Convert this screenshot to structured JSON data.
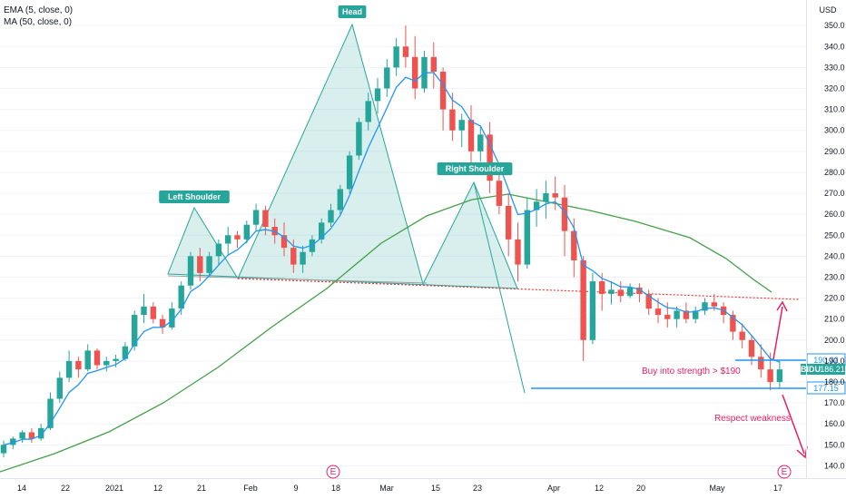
{
  "legend": {
    "ema": "EMA (5, close, 0)",
    "ma": "MA (50, close, 0)"
  },
  "currency": "USD",
  "colors": {
    "up": "#26a69a",
    "down": "#ef5350",
    "ema": "#2196f3",
    "ma": "#43a047",
    "pattern": "#26a69a",
    "neckline": "#e53935",
    "annotation": "#e91e63",
    "level": "#2196f3"
  },
  "chart_data": {
    "type": "candlestick",
    "ylim": [
      135,
      357
    ],
    "y_ticks": [
      140,
      150,
      160,
      170,
      180,
      190,
      200,
      210,
      220,
      230,
      240,
      250,
      260,
      270,
      280,
      290,
      300,
      310,
      320,
      330,
      340,
      350
    ],
    "x_tick_labels": [
      "14",
      "22",
      "2021",
      "12",
      "21",
      "Feb",
      "9",
      "18",
      "Mar",
      "15",
      "23",
      "Apr",
      "12",
      "20",
      "May",
      "17"
    ],
    "candles": [
      [
        146,
        152,
        144,
        150
      ],
      [
        150,
        154,
        148,
        153
      ],
      [
        153,
        157,
        151,
        156
      ],
      [
        156,
        158,
        151,
        153
      ],
      [
        153,
        160,
        152,
        158
      ],
      [
        158,
        175,
        157,
        172
      ],
      [
        172,
        185,
        170,
        182
      ],
      [
        182,
        195,
        180,
        190
      ],
      [
        190,
        192,
        182,
        186
      ],
      [
        186,
        198,
        185,
        195
      ],
      [
        195,
        196,
        186,
        188
      ],
      [
        188,
        192,
        185,
        190
      ],
      [
        190,
        193,
        187,
        191
      ],
      [
        191,
        199,
        190,
        197
      ],
      [
        197,
        214,
        195,
        212
      ],
      [
        212,
        222,
        208,
        216
      ],
      [
        216,
        218,
        208,
        210
      ],
      [
        210,
        212,
        203,
        206
      ],
      [
        206,
        218,
        205,
        215
      ],
      [
        215,
        228,
        212,
        226
      ],
      [
        226,
        242,
        224,
        240
      ],
      [
        240,
        244,
        228,
        232
      ],
      [
        232,
        242,
        230,
        240
      ],
      [
        240,
        248,
        236,
        246
      ],
      [
        246,
        254,
        240,
        250
      ],
      [
        250,
        252,
        244,
        248
      ],
      [
        248,
        257,
        246,
        255
      ],
      [
        255,
        265,
        252,
        262
      ],
      [
        262,
        264,
        250,
        254
      ],
      [
        254,
        258,
        246,
        250
      ],
      [
        250,
        256,
        240,
        244
      ],
      [
        244,
        248,
        232,
        236
      ],
      [
        236,
        245,
        232,
        242
      ],
      [
        242,
        250,
        240,
        248
      ],
      [
        248,
        258,
        246,
        256
      ],
      [
        256,
        265,
        254,
        262
      ],
      [
        262,
        274,
        260,
        272
      ],
      [
        272,
        290,
        270,
        288
      ],
      [
        288,
        306,
        286,
        304
      ],
      [
        304,
        318,
        300,
        314
      ],
      [
        314,
        325,
        308,
        320
      ],
      [
        320,
        334,
        316,
        330
      ],
      [
        330,
        344,
        326,
        340
      ],
      [
        340,
        350,
        330,
        335
      ],
      [
        335,
        345,
        315,
        320
      ],
      [
        320,
        338,
        318,
        335
      ],
      [
        335,
        342,
        320,
        328
      ],
      [
        328,
        330,
        300,
        310
      ],
      [
        310,
        318,
        295,
        300
      ],
      [
        300,
        308,
        292,
        305
      ],
      [
        305,
        312,
        280,
        290
      ],
      [
        290,
        302,
        285,
        298
      ],
      [
        298,
        304,
        270,
        276
      ],
      [
        276,
        282,
        260,
        264
      ],
      [
        264,
        270,
        240,
        248
      ],
      [
        248,
        256,
        228,
        236
      ],
      [
        236,
        268,
        234,
        262
      ],
      [
        262,
        272,
        254,
        266
      ],
      [
        266,
        276,
        258,
        270
      ],
      [
        270,
        278,
        262,
        268
      ],
      [
        268,
        274,
        240,
        252
      ],
      [
        252,
        258,
        230,
        238
      ],
      [
        238,
        240,
        190,
        200
      ],
      [
        200,
        232,
        198,
        228
      ],
      [
        228,
        232,
        214,
        222
      ],
      [
        222,
        228,
        217,
        224
      ],
      [
        224,
        228,
        218,
        221
      ],
      [
        221,
        227,
        220,
        225
      ],
      [
        225,
        227,
        218,
        222
      ],
      [
        222,
        224,
        212,
        215
      ],
      [
        215,
        220,
        208,
        212
      ],
      [
        212,
        218,
        206,
        210
      ],
      [
        210,
        216,
        206,
        214
      ],
      [
        214,
        218,
        208,
        210
      ],
      [
        210,
        216,
        208,
        214
      ],
      [
        214,
        220,
        212,
        218
      ],
      [
        218,
        222,
        214,
        216
      ],
      [
        216,
        218,
        208,
        212
      ],
      [
        212,
        214,
        200,
        204
      ],
      [
        204,
        208,
        196,
        200
      ],
      [
        200,
        202,
        188,
        192
      ],
      [
        192,
        198,
        182,
        186
      ],
      [
        186,
        194,
        176,
        180
      ],
      [
        180,
        190,
        177,
        186
      ]
    ]
  },
  "annotations": {
    "left_shoulder": "Left Shoulder",
    "head": "Head",
    "right_shoulder": "Right Shoulder",
    "buy": "Buy into strength > $190",
    "respect": "Respect weakness",
    "earnings": "E"
  },
  "price_tags": {
    "upper": "190.32",
    "current_symbol": "BIDU",
    "current": "186.21",
    "lower": "177.15"
  }
}
